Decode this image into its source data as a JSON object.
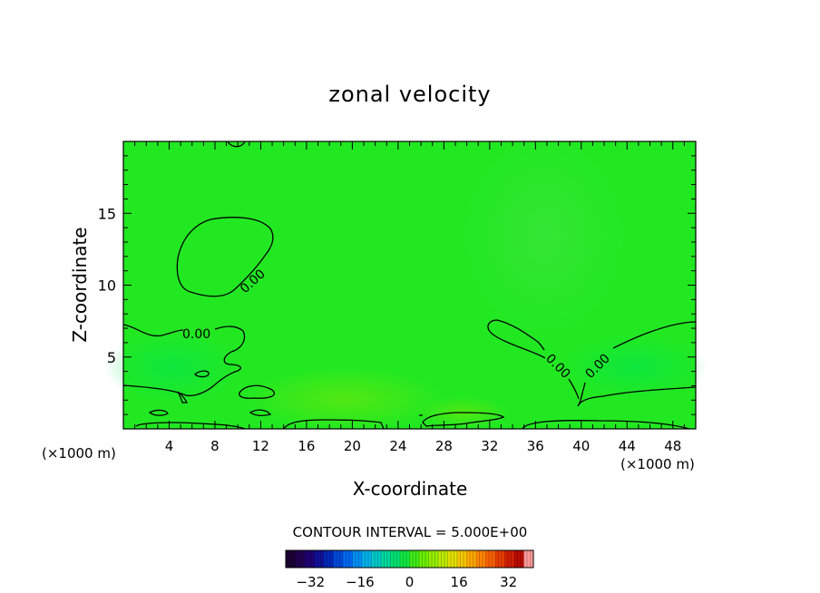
{
  "chart_data": {
    "type": "heatmap",
    "title": "zonal velocity",
    "xlabel": "X-coordinate",
    "ylabel": "Z-coordinate",
    "x_unit_label": "(×1000 m)",
    "x_unit_label_right": "(×1000 m)",
    "xlim": [
      0,
      50
    ],
    "ylim": [
      0,
      20
    ],
    "x_ticks": [
      "4",
      "8",
      "12",
      "16",
      "20",
      "24",
      "28",
      "32",
      "36",
      "40",
      "44",
      "48"
    ],
    "x_tick_values": [
      4,
      8,
      12,
      16,
      20,
      24,
      28,
      32,
      36,
      40,
      44,
      48
    ],
    "y_ticks": [
      "5",
      "10",
      "15"
    ],
    "y_tick_values": [
      5,
      10,
      15
    ],
    "contour_interval_text": "CONTOUR INTERVAL = 5.000E+00",
    "contour_labels": [
      "0.00",
      "0.00",
      "0.00",
      "0.00"
    ],
    "colorbar": {
      "range": [
        -40,
        40
      ],
      "tick_labels": [
        "−32",
        "−16",
        "0",
        "16",
        "32"
      ],
      "tick_values": [
        -32,
        -16,
        0,
        16,
        32
      ],
      "colors": [
        "#1a0033",
        "#20004f",
        "#1e0072",
        "#101096",
        "#0028b8",
        "#0048d8",
        "#0068ee",
        "#008ef4",
        "#00b0e8",
        "#00c8c8",
        "#00d89e",
        "#00e070",
        "#10e640",
        "#40ea18",
        "#6aee00",
        "#94ee00",
        "#bcea00",
        "#e0e000",
        "#f6c800",
        "#ffa800",
        "#ff8400",
        "#f86000",
        "#e63c00",
        "#d01e00",
        "#b80c00",
        "#ff9a9a"
      ]
    },
    "field_color": "#22e822",
    "contour_color": "#000000"
  }
}
